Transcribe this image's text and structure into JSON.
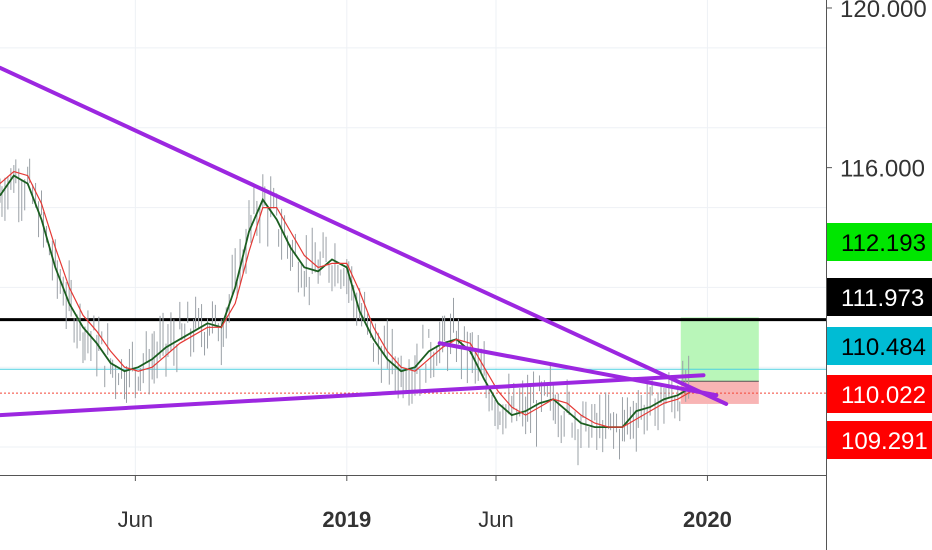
{
  "chart_data": {
    "type": "line",
    "title": "",
    "xlabel": "",
    "ylabel": "",
    "x_range": [
      "2018-01-15",
      "2020-04-30"
    ],
    "y_range": [
      108.3,
      120.2
    ],
    "y_scale": "linear",
    "grid": true,
    "y_ticks": [
      {
        "value": 120.0,
        "label": "120.000"
      },
      {
        "value": 116.0,
        "label": "116.000"
      }
    ],
    "x_ticks": [
      {
        "date": "2018-06-01",
        "label": "Jun",
        "bold": false
      },
      {
        "date": "2019-01-01",
        "label": "2019",
        "bold": true
      },
      {
        "date": "2019-06-01",
        "label": "Jun",
        "bold": false
      },
      {
        "date": "2020-01-01",
        "label": "2020",
        "bold": true
      }
    ],
    "price_tags": [
      {
        "value": 112.193,
        "label": "112.193",
        "bg": "#00e600",
        "fg": "#000000"
      },
      {
        "value": 111.973,
        "label": "111.973",
        "bg": "#000000",
        "fg": "#ffffff"
      },
      {
        "value": 110.484,
        "label": "110.484",
        "bg": "#00bcd4",
        "fg": "#000000"
      },
      {
        "value": 110.022,
        "label": "110.022",
        "bg": "#ff0000",
        "fg": "#ffffff"
      },
      {
        "value": 109.291,
        "label": "109.291",
        "bg": "#ff0000",
        "fg": "#ffffff"
      }
    ],
    "horizontal_lines": [
      {
        "value": 112.193,
        "color": "#000000",
        "style": "solid"
      },
      {
        "value": 110.95,
        "color": "#4dd0e1",
        "style": "solid"
      },
      {
        "value": 110.35,
        "color": "#f44336",
        "style": "dotted"
      }
    ],
    "trendlines": [
      {
        "from": {
          "date": "2018-01-15",
          "value": 118.5
        },
        "to": {
          "date": "2020-01-20",
          "value": 110.08
        },
        "color": "#9c27e0"
      },
      {
        "from": {
          "date": "2018-01-15",
          "value": 109.8
        },
        "to": {
          "date": "2019-12-28",
          "value": 110.8
        },
        "color": "#9c27e0"
      },
      {
        "from": {
          "date": "2019-04-05",
          "value": 111.6
        },
        "to": {
          "date": "2020-01-10",
          "value": 110.3
        },
        "color": "#9c27e0"
      }
    ],
    "position_box": {
      "start_date": "2019-12-05",
      "end_date": "2020-02-22",
      "entry": 110.65,
      "target": 112.25,
      "stop": 110.08,
      "profit_color": "#b9f6b9",
      "loss_color": "#f8b4b4"
    },
    "series": [
      {
        "color": "#1b5e20",
        "points": [
          [
            "2018-01-15",
            115.3
          ],
          [
            "2018-01-29",
            115.8
          ],
          [
            "2018-02-12",
            115.6
          ],
          [
            "2018-02-26",
            114.7
          ],
          [
            "2018-03-12",
            113.5
          ],
          [
            "2018-03-26",
            112.6
          ],
          [
            "2018-04-09",
            112.0
          ],
          [
            "2018-04-23",
            111.6
          ],
          [
            "2018-05-07",
            111.1
          ],
          [
            "2018-05-21",
            110.9
          ],
          [
            "2018-06-04",
            111.0
          ],
          [
            "2018-06-18",
            111.2
          ],
          [
            "2018-07-02",
            111.5
          ],
          [
            "2018-07-16",
            111.7
          ],
          [
            "2018-07-30",
            111.9
          ],
          [
            "2018-08-13",
            112.1
          ],
          [
            "2018-08-27",
            112.0
          ],
          [
            "2018-09-10",
            113.0
          ],
          [
            "2018-09-24",
            114.4
          ],
          [
            "2018-10-08",
            115.2
          ],
          [
            "2018-10-22",
            114.7
          ],
          [
            "2018-11-05",
            114.0
          ],
          [
            "2018-11-19",
            113.5
          ],
          [
            "2018-12-03",
            113.4
          ],
          [
            "2018-12-17",
            113.7
          ],
          [
            "2019-01-01",
            113.5
          ],
          [
            "2019-01-14",
            112.4
          ],
          [
            "2019-01-28",
            111.7
          ],
          [
            "2019-02-11",
            111.2
          ],
          [
            "2019-02-25",
            110.9
          ],
          [
            "2019-03-11",
            111.0
          ],
          [
            "2019-03-25",
            111.4
          ],
          [
            "2019-04-08",
            111.6
          ],
          [
            "2019-04-22",
            111.7
          ],
          [
            "2019-05-06",
            111.4
          ],
          [
            "2019-05-20",
            110.7
          ],
          [
            "2019-06-03",
            110.1
          ],
          [
            "2019-06-17",
            109.8
          ],
          [
            "2019-07-01",
            109.9
          ],
          [
            "2019-07-15",
            110.1
          ],
          [
            "2019-07-29",
            110.2
          ],
          [
            "2019-08-12",
            109.9
          ],
          [
            "2019-08-26",
            109.6
          ],
          [
            "2019-09-09",
            109.5
          ],
          [
            "2019-09-23",
            109.5
          ],
          [
            "2019-10-07",
            109.5
          ],
          [
            "2019-10-21",
            109.9
          ],
          [
            "2019-11-04",
            110.0
          ],
          [
            "2019-11-18",
            110.2
          ],
          [
            "2019-12-02",
            110.3
          ],
          [
            "2019-12-16",
            110.5
          ]
        ]
      },
      {
        "color": "#e53935",
        "points": [
          [
            "2018-01-15",
            115.6
          ],
          [
            "2018-01-29",
            115.9
          ],
          [
            "2018-02-12",
            115.8
          ],
          [
            "2018-02-26",
            115.1
          ],
          [
            "2018-03-12",
            114.0
          ],
          [
            "2018-03-26",
            113.0
          ],
          [
            "2018-04-09",
            112.3
          ],
          [
            "2018-04-23",
            111.9
          ],
          [
            "2018-05-07",
            111.4
          ],
          [
            "2018-05-21",
            111.0
          ],
          [
            "2018-06-04",
            110.9
          ],
          [
            "2018-06-18",
            111.0
          ],
          [
            "2018-07-02",
            111.3
          ],
          [
            "2018-07-16",
            111.6
          ],
          [
            "2018-07-30",
            111.8
          ],
          [
            "2018-08-13",
            112.0
          ],
          [
            "2018-08-27",
            112.0
          ],
          [
            "2018-09-10",
            112.6
          ],
          [
            "2018-09-24",
            113.9
          ],
          [
            "2018-10-08",
            115.0
          ],
          [
            "2018-10-22",
            115.0
          ],
          [
            "2018-11-05",
            114.4
          ],
          [
            "2018-11-19",
            113.8
          ],
          [
            "2018-12-03",
            113.5
          ],
          [
            "2018-12-17",
            113.6
          ],
          [
            "2019-01-01",
            113.6
          ],
          [
            "2019-01-14",
            112.9
          ],
          [
            "2019-01-28",
            112.0
          ],
          [
            "2019-02-11",
            111.4
          ],
          [
            "2019-02-25",
            111.0
          ],
          [
            "2019-03-11",
            110.9
          ],
          [
            "2019-03-25",
            111.2
          ],
          [
            "2019-04-08",
            111.5
          ],
          [
            "2019-04-22",
            111.7
          ],
          [
            "2019-05-06",
            111.6
          ],
          [
            "2019-05-20",
            111.0
          ],
          [
            "2019-06-03",
            110.4
          ],
          [
            "2019-06-17",
            110.0
          ],
          [
            "2019-07-01",
            109.8
          ],
          [
            "2019-07-15",
            110.0
          ],
          [
            "2019-07-29",
            110.2
          ],
          [
            "2019-08-12",
            110.1
          ],
          [
            "2019-08-26",
            109.8
          ],
          [
            "2019-09-09",
            109.6
          ],
          [
            "2019-09-23",
            109.5
          ],
          [
            "2019-10-07",
            109.5
          ],
          [
            "2019-10-21",
            109.7
          ],
          [
            "2019-11-04",
            109.9
          ],
          [
            "2019-11-18",
            110.1
          ],
          [
            "2019-12-02",
            110.2
          ],
          [
            "2019-12-16",
            110.4
          ]
        ]
      }
    ]
  }
}
